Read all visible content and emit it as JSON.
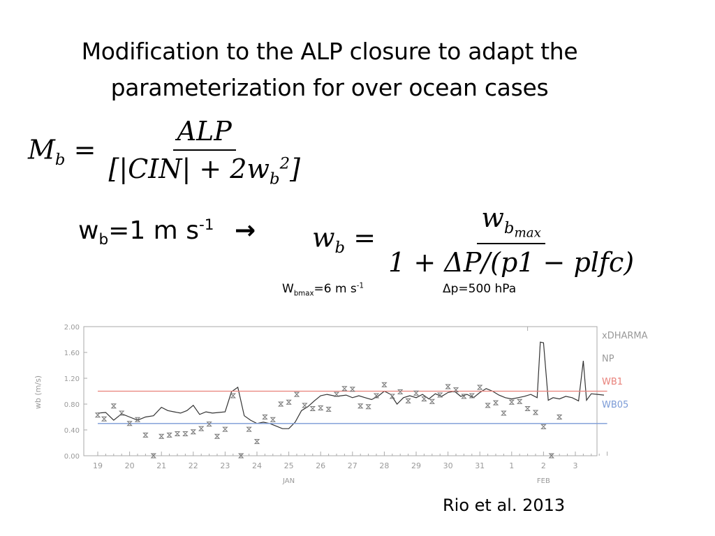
{
  "slide": {
    "title_line1": "Modification to the ALP closure to adapt the",
    "title_line2": "parameterization for over ocean cases",
    "eq1": {
      "lhs": "M",
      "lhs_sub": "b",
      "eq": " = ",
      "num": "ALP",
      "den_a": "[|CIN| + 2w",
      "den_sub": "b",
      "den_sup": "2",
      "den_b": "]"
    },
    "wb_text": {
      "w": "w",
      "sub": "b",
      "val": "=1 m s",
      "sup": "-1",
      "arrow": "→"
    },
    "eq2": {
      "lhs": "w",
      "lhs_sub": "b",
      "eq": " = ",
      "num": "w",
      "num_sub": "b",
      "num_subsub": "max",
      "den": "1 + ΔP/(p1 − plfc)"
    },
    "param1": {
      "w": "W",
      "sub": "bmax",
      "val": "=6 m s",
      "sup": "-1"
    },
    "param2": "Δp=500 hPa",
    "citation": "Rio et al. 2013"
  },
  "chart_data": {
    "type": "line",
    "ylabel": "wb (m/s)",
    "ylim": [
      0.0,
      2.0
    ],
    "yticks": [
      "0.00",
      "0.40",
      "0.80",
      "1.20",
      "1.60",
      "2.00"
    ],
    "x_ticks": [
      "19",
      "20",
      "21",
      "22",
      "23",
      "24",
      "25",
      "26",
      "27",
      "28",
      "29",
      "30",
      "31",
      "1",
      "2",
      "3"
    ],
    "month_labels": [
      "JAN",
      "FEB"
    ],
    "xlim": [
      0,
      16
    ],
    "legend": [
      "xDHARMA",
      "NP",
      "WB1",
      "WB05"
    ],
    "legend_colors": [
      "#999999",
      "#999999",
      "#e8817a",
      "#7a9ad6"
    ],
    "series": [
      {
        "name": "NP",
        "color": "#333333",
        "x": [
          0.0,
          0.25,
          0.5,
          0.75,
          1.0,
          1.25,
          1.5,
          1.75,
          2.0,
          2.2,
          2.4,
          2.6,
          2.8,
          3.0,
          3.2,
          3.4,
          3.6,
          3.8,
          4.0,
          4.2,
          4.4,
          4.6,
          4.8,
          5.0,
          5.2,
          5.4,
          5.6,
          5.8,
          6.0,
          6.2,
          6.4,
          6.6,
          6.8,
          7.0,
          7.2,
          7.5,
          7.8,
          8.0,
          8.2,
          8.4,
          8.6,
          8.8,
          9.0,
          9.2,
          9.4,
          9.6,
          9.8,
          10.0,
          10.2,
          10.4,
          10.6,
          10.8,
          11.0,
          11.2,
          11.4,
          11.6,
          11.8,
          12.0,
          12.2,
          12.4,
          12.6,
          12.8,
          13.0,
          13.2,
          13.4,
          13.6,
          13.8,
          13.9,
          14.0,
          14.15,
          14.3,
          14.5,
          14.7,
          14.9,
          15.1,
          15.25,
          15.35,
          15.5,
          15.7,
          15.9
        ],
        "y": [
          0.66,
          0.67,
          0.55,
          0.65,
          0.6,
          0.55,
          0.6,
          0.62,
          0.75,
          0.7,
          0.68,
          0.66,
          0.7,
          0.78,
          0.64,
          0.68,
          0.66,
          0.67,
          0.68,
          0.99,
          1.06,
          0.62,
          0.55,
          0.5,
          0.52,
          0.5,
          0.46,
          0.42,
          0.42,
          0.52,
          0.7,
          0.76,
          0.85,
          0.93,
          0.95,
          0.92,
          0.94,
          0.9,
          0.93,
          0.9,
          0.87,
          0.92,
          1.0,
          0.95,
          0.8,
          0.9,
          0.93,
          0.9,
          0.95,
          0.88,
          0.96,
          0.92,
          0.98,
          1.0,
          0.92,
          0.95,
          0.9,
          0.98,
          1.04,
          1.0,
          0.94,
          0.9,
          0.88,
          0.9,
          0.92,
          0.95,
          0.9,
          1.76,
          1.75,
          0.86,
          0.9,
          0.88,
          0.92,
          0.9,
          0.85,
          1.47,
          0.86,
          0.96,
          0.95,
          0.94
        ]
      },
      {
        "name": "WB1",
        "color": "#e8817a",
        "x": [
          0.0,
          16.0
        ],
        "y": [
          1.0,
          1.0
        ]
      },
      {
        "name": "WB05",
        "color": "#7a9ad6",
        "x": [
          0.0,
          16.0
        ],
        "y": [
          0.5,
          0.5
        ]
      },
      {
        "name": "xDHARMA",
        "color": "#777777",
        "x": [
          0.0,
          0.2,
          0.5,
          0.75,
          1.0,
          1.25,
          1.5,
          1.75,
          2.0,
          2.25,
          2.5,
          2.75,
          3.0,
          3.25,
          3.5,
          3.75,
          4.0,
          4.25,
          4.5,
          4.75,
          5.0,
          5.25,
          5.5,
          5.75,
          6.0,
          6.25,
          6.5,
          6.75,
          7.0,
          7.25,
          7.5,
          7.75,
          8.0,
          8.25,
          8.5,
          8.75,
          9.0,
          9.25,
          9.5,
          9.75,
          10.0,
          10.25,
          10.5,
          10.75,
          11.0,
          11.25,
          11.5,
          11.75,
          12.0,
          12.25,
          12.5,
          12.75,
          13.0,
          13.25,
          13.5,
          13.75,
          14.0,
          14.25,
          14.5
        ],
        "y": [
          0.63,
          0.57,
          0.77,
          0.66,
          0.5,
          0.56,
          0.32,
          0.0,
          0.3,
          0.32,
          0.34,
          0.34,
          0.37,
          0.42,
          0.49,
          0.3,
          0.41,
          0.93,
          0.0,
          0.41,
          0.22,
          0.6,
          0.56,
          0.8,
          0.83,
          0.95,
          0.78,
          0.73,
          0.74,
          0.72,
          0.95,
          1.04,
          1.03,
          0.77,
          0.76,
          0.93,
          1.1,
          0.92,
          0.99,
          0.85,
          0.97,
          0.88,
          0.84,
          0.94,
          1.07,
          1.02,
          0.92,
          0.93,
          1.06,
          0.78,
          0.82,
          0.66,
          0.83,
          0.84,
          0.73,
          0.67,
          0.45,
          0.0,
          0.6
        ]
      }
    ]
  }
}
